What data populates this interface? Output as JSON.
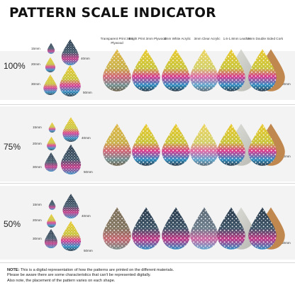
{
  "title": "PATTERN SCALE INDICATOR",
  "columns": [
    "Transparent Print 3mm Plywood",
    "Bright Print 3mm Plywood",
    "3mm White Acrylic",
    "3mm Clear Acrylic",
    "1.6-1.8mm Leather",
    "2mm Double Sided Cork"
  ],
  "rows": [
    {
      "scale": "100%",
      "size_small": "15mm",
      "size_medium": "20mm",
      "size_large": "30mm",
      "size_40": "40mm",
      "size_50": "50mm",
      "size_60": "60mm"
    },
    {
      "scale": "75%",
      "size_small": "15mm",
      "size_medium": "20mm",
      "size_large": "30mm",
      "size_40": "40mm",
      "size_50": "50mm",
      "size_60": "60mm"
    },
    {
      "scale": "50%",
      "size_small": "15mm",
      "size_medium": "20mm",
      "size_large": "30mm",
      "size_40": "40mm",
      "size_50": "50mm",
      "size_60": "60mm"
    }
  ],
  "note": {
    "label": "NOTE:",
    "line1": "This is a digital representation of how the patterns are printed on the different materials.",
    "line2": "Please be aware there are some characteristics that can't be represented digitally.",
    "line3": "Also note, the placement of the pattern varies on each shape."
  },
  "colors": {
    "yellow": "#e8c62a",
    "pink": "#d8388e",
    "blue": "#2f8fc2",
    "dark": "#2d3a48",
    "wood": "#c99a5e",
    "cork": "#c0884f"
  }
}
